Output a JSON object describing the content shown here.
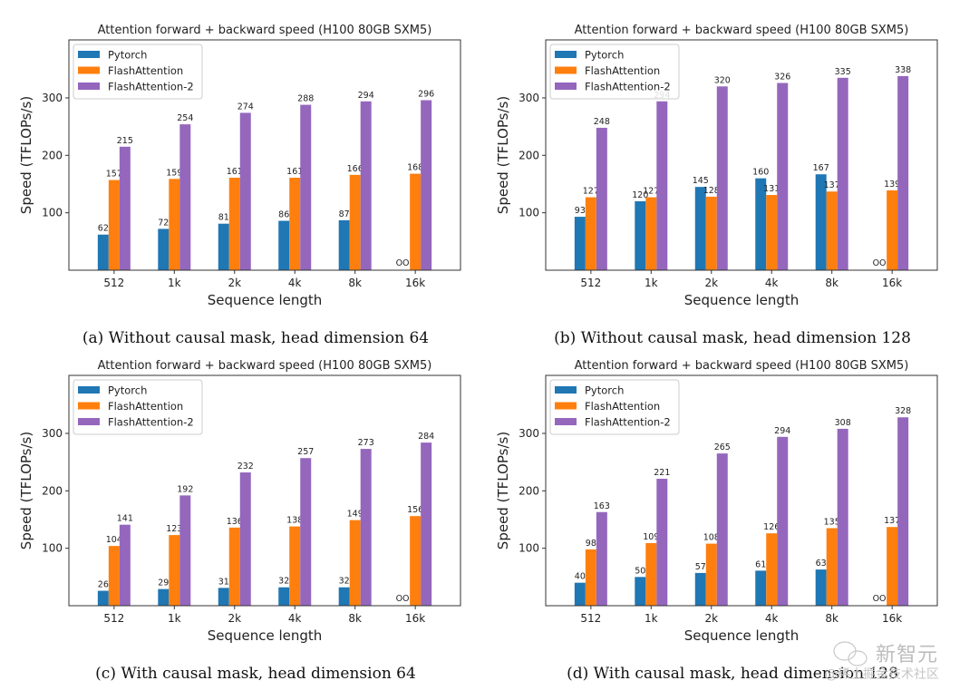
{
  "colors": {
    "Pytorch": "#1f77b4",
    "FlashAttention": "#ff7f0e",
    "FlashAttention-2": "#9467bd"
  },
  "watermark": {
    "line1": "新智元",
    "line2": "@稀土掘金技术社区"
  },
  "chart_data": [
    {
      "type": "bar",
      "title": "Attention forward + backward speed (H100 80GB SXM5)",
      "caption": "(a) Without causal mask, head dimension 64",
      "xlabel": "Sequence length",
      "ylabel": "Speed (TFLOPs/s)",
      "categories": [
        "512",
        "1k",
        "2k",
        "4k",
        "8k",
        "16k"
      ],
      "yticks": [
        100,
        200,
        300
      ],
      "ylim": [
        0,
        401
      ],
      "legend": "top-left",
      "oom_label": "OOM",
      "series": [
        {
          "name": "Pytorch",
          "values": [
            62,
            72,
            81,
            86,
            87,
            null
          ]
        },
        {
          "name": "FlashAttention",
          "values": [
            157,
            159,
            161,
            161,
            166,
            168
          ]
        },
        {
          "name": "FlashAttention-2",
          "values": [
            215,
            254,
            274,
            288,
            294,
            296
          ]
        }
      ]
    },
    {
      "type": "bar",
      "title": "Attention forward + backward speed (H100 80GB SXM5)",
      "caption": "(b) Without causal mask, head dimension 128",
      "xlabel": "Sequence length",
      "ylabel": "Speed (TFLOPs/s)",
      "categories": [
        "512",
        "1k",
        "2k",
        "4k",
        "8k",
        "16k"
      ],
      "yticks": [
        100,
        200,
        300
      ],
      "ylim": [
        0,
        401
      ],
      "legend": "top-left",
      "oom_label": "OOM",
      "series": [
        {
          "name": "Pytorch",
          "values": [
            93,
            120,
            145,
            160,
            167,
            null
          ]
        },
        {
          "name": "FlashAttention",
          "values": [
            127,
            127,
            128,
            131,
            137,
            139
          ]
        },
        {
          "name": "FlashAttention-2",
          "values": [
            248,
            294,
            320,
            326,
            335,
            338
          ]
        }
      ]
    },
    {
      "type": "bar",
      "title": "Attention forward + backward speed (H100 80GB SXM5)",
      "caption": "(c) With causal mask, head dimension 64",
      "xlabel": "Sequence length",
      "ylabel": "Speed (TFLOPs/s)",
      "categories": [
        "512",
        "1k",
        "2k",
        "4k",
        "8k",
        "16k"
      ],
      "yticks": [
        100,
        200,
        300
      ],
      "ylim": [
        0,
        401
      ],
      "legend": "top-left",
      "oom_label": "OOM",
      "series": [
        {
          "name": "Pytorch",
          "values": [
            26,
            29,
            31,
            32,
            32,
            null
          ]
        },
        {
          "name": "FlashAttention",
          "values": [
            104,
            123,
            136,
            138,
            149,
            156
          ]
        },
        {
          "name": "FlashAttention-2",
          "values": [
            141,
            192,
            232,
            257,
            273,
            284
          ]
        }
      ]
    },
    {
      "type": "bar",
      "title": "Attention forward + backward speed (H100 80GB SXM5)",
      "caption": "(d) With causal mask, head dimension 128",
      "xlabel": "Sequence length",
      "ylabel": "Speed (TFLOPs/s)",
      "categories": [
        "512",
        "1k",
        "2k",
        "4k",
        "8k",
        "16k"
      ],
      "yticks": [
        100,
        200,
        300
      ],
      "ylim": [
        0,
        401
      ],
      "legend": "top-left",
      "oom_label": "OOM",
      "series": [
        {
          "name": "Pytorch",
          "values": [
            40,
            50,
            57,
            61,
            63,
            null
          ]
        },
        {
          "name": "FlashAttention",
          "values": [
            98,
            109,
            108,
            126,
            135,
            137
          ]
        },
        {
          "name": "FlashAttention-2",
          "values": [
            163,
            221,
            265,
            294,
            308,
            328
          ]
        }
      ]
    }
  ]
}
